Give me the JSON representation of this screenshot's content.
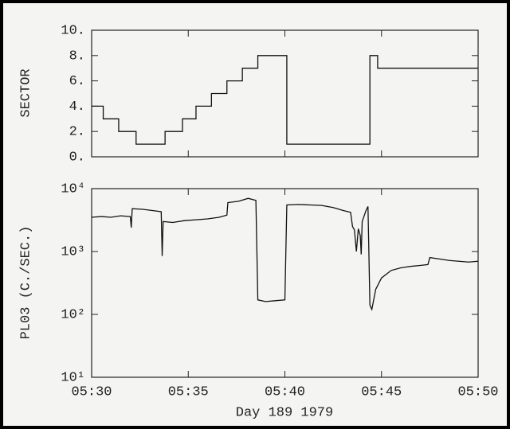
{
  "chart_data": [
    {
      "type": "line",
      "step": "post",
      "ylabel": "SECTOR",
      "color": "#111111",
      "x": [
        330,
        330.6,
        331.4,
        332.3,
        333.8,
        334.7,
        335.4,
        336.2,
        337.0,
        337.8,
        338.6,
        340.1,
        344.4,
        344.8,
        350
      ],
      "values": [
        4,
        3,
        2,
        1,
        2,
        3,
        4,
        5,
        6,
        7,
        8,
        1,
        8,
        7,
        7
      ],
      "xlim": [
        330,
        350
      ],
      "xticks": [
        330,
        335,
        340,
        345,
        350
      ],
      "ylim": [
        0,
        10
      ],
      "yticks": [
        {
          "value": 0,
          "label": "0."
        },
        {
          "value": 2,
          "label": "2."
        },
        {
          "value": 4,
          "label": "4."
        },
        {
          "value": 6,
          "label": "6."
        },
        {
          "value": 8,
          "label": "8."
        },
        {
          "value": 10,
          "label": "10."
        }
      ]
    },
    {
      "type": "line",
      "log_y": true,
      "ylabel": "PL03 (C./SEC.)",
      "xlabel": "Day 189 1979",
      "color": "#111111",
      "x": [
        330.0,
        330.5,
        331.0,
        331.5,
        332.0,
        332.05,
        332.1,
        332.6,
        333.1,
        333.6,
        333.65,
        333.7,
        334.2,
        334.8,
        335.4,
        336.0,
        336.6,
        337.0,
        337.05,
        337.6,
        338.1,
        338.5,
        338.6,
        339.0,
        339.5,
        340.0,
        340.1,
        340.7,
        341.3,
        341.9,
        342.5,
        343.0,
        343.4,
        343.5,
        343.6,
        343.7,
        343.8,
        343.9,
        343.95,
        344.0,
        344.2,
        344.3,
        344.4,
        344.5,
        344.7,
        345.0,
        345.5,
        346.0,
        346.5,
        347.0,
        347.4,
        347.5,
        348.0,
        348.5,
        349.0,
        349.5,
        350.0
      ],
      "values": [
        3500,
        3600,
        3500,
        3700,
        3600,
        2400,
        4800,
        4700,
        4500,
        4300,
        850,
        3000,
        2900,
        3100,
        3200,
        3300,
        3500,
        3800,
        6000,
        6300,
        7000,
        6500,
        170,
        160,
        165,
        170,
        5500,
        5600,
        5500,
        5400,
        5000,
        4500,
        4200,
        2500,
        2200,
        1000,
        2300,
        1800,
        900,
        3000,
        4500,
        5200,
        140,
        120,
        250,
        380,
        500,
        550,
        580,
        600,
        620,
        800,
        760,
        720,
        700,
        680,
        700
      ],
      "xlim": [
        330,
        350
      ],
      "xticks": [
        {
          "value": 330,
          "label": "05:30"
        },
        {
          "value": 335,
          "label": "05:35"
        },
        {
          "value": 340,
          "label": "05:40"
        },
        {
          "value": 345,
          "label": "05:45"
        },
        {
          "value": 350,
          "label": "05:50"
        }
      ],
      "ylim": [
        10,
        10000
      ],
      "yticks": [
        {
          "value": 10,
          "label": "10¹"
        },
        {
          "value": 100,
          "label": "10²"
        },
        {
          "value": 1000,
          "label": "10³"
        },
        {
          "value": 10000,
          "label": "10⁴"
        }
      ]
    }
  ]
}
